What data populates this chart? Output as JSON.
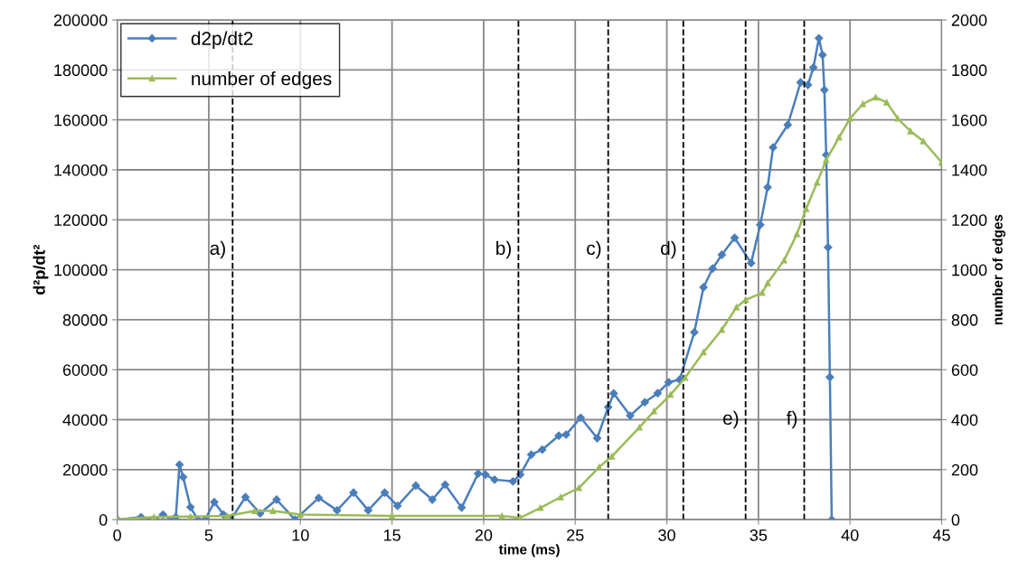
{
  "chart_data": {
    "type": "line",
    "xlabel": "time (ms)",
    "ylabel": "d²p/dt²",
    "y2label": "number of edges",
    "xlim": [
      0,
      45
    ],
    "xticks": [
      0,
      5,
      10,
      15,
      20,
      25,
      30,
      35,
      40,
      45
    ],
    "ylim": [
      0,
      200000
    ],
    "yticks": [
      0,
      20000,
      40000,
      60000,
      80000,
      100000,
      120000,
      140000,
      160000,
      180000,
      200000
    ],
    "y2lim": [
      0,
      2000
    ],
    "y2ticks": [
      0,
      200,
      400,
      600,
      800,
      1000,
      1200,
      1400,
      1600,
      1800,
      2000
    ],
    "grid": true,
    "legend": "top left",
    "line_style": "solid",
    "series": [
      {
        "name": "d2p/dt2",
        "color": "#4a7ebb",
        "marker": "diamond",
        "x": [
          0,
          1.3,
          2,
          2.5,
          3,
          3.2,
          3.4,
          3.6,
          4,
          4.4,
          4.8,
          5.3,
          5.8,
          6.2,
          7.0,
          7.8,
          8.7,
          9.7,
          11.0,
          12.0,
          12.9,
          13.7,
          14.6,
          15.3,
          16.3,
          17.2,
          17.9,
          18.8,
          19.7,
          20.1,
          20.6,
          21.6,
          22.0,
          22.6,
          23.2,
          24.1,
          24.5,
          25.3,
          26.2,
          26.8,
          27.1,
          28.0,
          28.8,
          29.5,
          30.1,
          30.7,
          31.5,
          32.0,
          32.5,
          33.0,
          33.7,
          34.6,
          35.1,
          35.5,
          35.8,
          36.6,
          37.3,
          37.7,
          38.0,
          38.3,
          38.5,
          38.6,
          38.7,
          38.8,
          38.9,
          39.0
        ],
        "values": [
          0,
          1000,
          0,
          2000,
          0,
          1000,
          22000,
          17000,
          5000,
          0,
          0,
          7000,
          2000,
          0,
          9000,
          2500,
          8000,
          0,
          8700,
          3700,
          10800,
          3700,
          10800,
          5500,
          13600,
          8000,
          14000,
          4800,
          18400,
          18000,
          16000,
          15300,
          18000,
          26000,
          28000,
          33600,
          34000,
          40800,
          32600,
          45000,
          50500,
          41600,
          47000,
          50600,
          55000,
          56000,
          75000,
          93000,
          100500,
          106000,
          112800,
          102700,
          118000,
          133000,
          149000,
          158000,
          175000,
          174000,
          181000,
          192700,
          186000,
          172000,
          146000,
          109000,
          57000,
          0
        ]
      },
      {
        "name": "number of edges",
        "color": "#9bbb59",
        "marker": "triangle",
        "axis": "y2",
        "x": [
          0,
          2,
          4,
          6,
          7.5,
          8.5,
          10,
          15,
          21,
          22.0,
          23.1,
          24.2,
          25.2,
          26.3,
          27.0,
          28.5,
          29.3,
          30.2,
          31.0,
          32.0,
          33.0,
          33.8,
          34.3,
          35.2,
          35.5,
          36.4,
          37.1,
          37.6,
          38.2,
          38.7,
          39.4,
          40.0,
          40.7,
          41.4,
          42.0,
          42.6,
          43.3,
          44.0,
          45.0
        ],
        "values": [
          0,
          10,
          12,
          15,
          35,
          35,
          20,
          15,
          15,
          7,
          47,
          90,
          127,
          210,
          253,
          369,
          434,
          500,
          568,
          670,
          760,
          850,
          880,
          908,
          947,
          1038,
          1143,
          1244,
          1349,
          1440,
          1530,
          1606,
          1664,
          1690,
          1670,
          1606,
          1555,
          1515,
          1430
        ]
      }
    ],
    "ref_lines": [
      {
        "axis": "x",
        "value": 6.3,
        "label": "a)",
        "color": "#000000",
        "line_style": "dashed"
      },
      {
        "axis": "x",
        "value": 21.9,
        "label": "b)",
        "color": "#000000",
        "line_style": "dashed"
      },
      {
        "axis": "x",
        "value": 26.8,
        "label": "c)",
        "color": "#000000",
        "line_style": "dashed"
      },
      {
        "axis": "x",
        "value": 30.9,
        "label": "d)",
        "color": "#000000",
        "line_style": "dashed"
      },
      {
        "axis": "x",
        "value": 34.3,
        "label": "e)",
        "color": "#000000",
        "line_style": "dashed"
      },
      {
        "axis": "x",
        "value": 37.5,
        "label": "f)",
        "color": "#000000",
        "line_style": "dashed"
      }
    ]
  }
}
